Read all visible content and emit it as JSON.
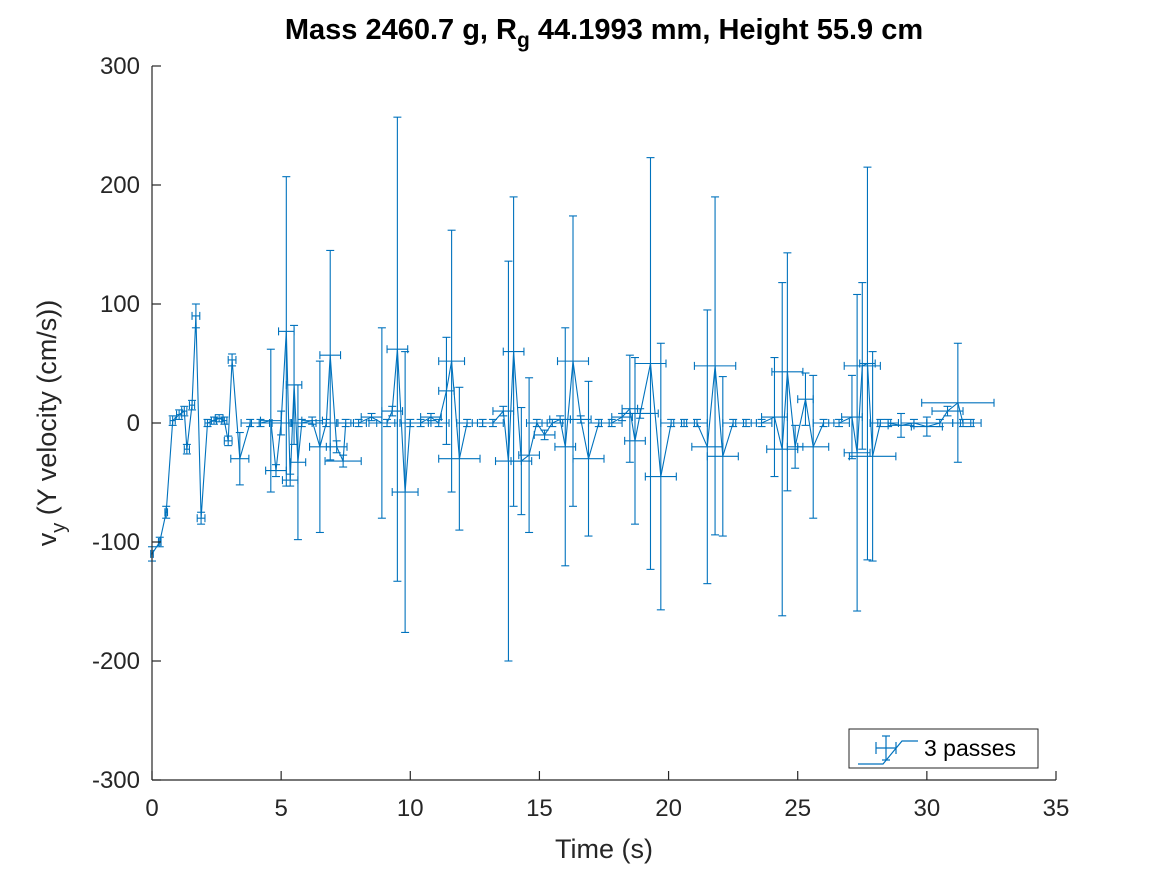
{
  "chart_data": {
    "type": "line",
    "title": {
      "part1": "Mass 2460.7 g, R",
      "subscript": "g",
      "part2": " 44.1993 mm,  Height 55.9 cm"
    },
    "xlabel": "Time (s)",
    "ylabel": {
      "main": "v",
      "subscript": "y",
      "rest": " (Y velocity (cm/s))"
    },
    "xlim": [
      0,
      35
    ],
    "ylim": [
      -300,
      300
    ],
    "xticks": [
      "0",
      "5",
      "10",
      "15",
      "20",
      "25",
      "30",
      "35"
    ],
    "yticks": [
      "-300",
      "-200",
      "-100",
      "0",
      "100",
      "200",
      "300"
    ],
    "legend": {
      "position": "bottom-right",
      "entries": [
        "3 passes"
      ]
    },
    "colors": {
      "series": "#0072BD",
      "axis": "#262626",
      "background": "#ffffff"
    },
    "grid": false,
    "series": [
      {
        "name": "3 passes",
        "errorbars": "both",
        "points": [
          [
            0.0,
            -110,
            6,
            0.05
          ],
          [
            0.3,
            -100,
            4,
            0.05
          ],
          [
            0.55,
            -75,
            5,
            0.05
          ],
          [
            0.8,
            2,
            4,
            0.1
          ],
          [
            1.05,
            7,
            4,
            0.1
          ],
          [
            1.25,
            10,
            4,
            0.1
          ],
          [
            1.35,
            -22,
            4,
            0.1
          ],
          [
            1.55,
            15,
            4,
            0.1
          ],
          [
            1.7,
            90,
            10,
            0.15
          ],
          [
            1.9,
            -80,
            5,
            0.15
          ],
          [
            2.15,
            0,
            3,
            0.1
          ],
          [
            2.4,
            2,
            3,
            0.1
          ],
          [
            2.6,
            4,
            3,
            0.15
          ],
          [
            2.8,
            2,
            3,
            0.1
          ],
          [
            2.95,
            -15,
            4,
            0.15
          ],
          [
            3.1,
            53,
            5,
            0.15
          ],
          [
            3.4,
            -30,
            22,
            0.35
          ],
          [
            3.8,
            0,
            3,
            0.35
          ],
          [
            4.2,
            0,
            3,
            0.35
          ],
          [
            4.6,
            2,
            60,
            0.4
          ],
          [
            4.8,
            -40,
            5,
            0.4
          ],
          [
            5.0,
            0,
            10,
            0.35
          ],
          [
            5.2,
            77,
            130,
            0.3
          ],
          [
            5.35,
            -48,
            5,
            0.3
          ],
          [
            5.5,
            32,
            50,
            0.3
          ],
          [
            5.65,
            -33,
            65,
            0.3
          ],
          [
            5.8,
            0,
            3,
            0.4
          ],
          [
            6.2,
            2,
            3,
            0.4
          ],
          [
            6.5,
            -20,
            72,
            0.4
          ],
          [
            6.75,
            0,
            3,
            0.4
          ],
          [
            6.9,
            57,
            88,
            0.4
          ],
          [
            7.15,
            -20,
            5,
            0.4
          ],
          [
            7.4,
            -32,
            5,
            0.7
          ],
          [
            7.5,
            0,
            3,
            0.3
          ],
          [
            8.0,
            0,
            3,
            0.3
          ],
          [
            8.5,
            5,
            3,
            0.4
          ],
          [
            8.9,
            0,
            80,
            0.5
          ],
          [
            9.1,
            0,
            3,
            0.4
          ],
          [
            9.3,
            10,
            4,
            0.4
          ],
          [
            9.5,
            62,
            195,
            0.4
          ],
          [
            9.8,
            -58,
            118,
            0.5
          ],
          [
            10.0,
            0,
            3,
            0.4
          ],
          [
            10.4,
            0,
            3,
            0.4
          ],
          [
            10.8,
            5,
            3,
            0.4
          ],
          [
            11.1,
            0,
            3,
            0.4
          ],
          [
            11.4,
            27,
            45,
            0.3
          ],
          [
            11.6,
            52,
            110,
            0.5
          ],
          [
            11.9,
            -30,
            60,
            0.8
          ],
          [
            12.2,
            0,
            3,
            0.4
          ],
          [
            12.8,
            0,
            3,
            0.4
          ],
          [
            13.2,
            0,
            3,
            0.4
          ],
          [
            13.6,
            10,
            4,
            0.4
          ],
          [
            13.8,
            -32,
            168,
            0.5
          ],
          [
            14.0,
            60,
            130,
            0.4
          ],
          [
            14.3,
            -32,
            45,
            0.4
          ],
          [
            14.6,
            -27,
            65,
            0.4
          ],
          [
            14.9,
            0,
            3,
            0.4
          ],
          [
            15.2,
            -10,
            4,
            0.4
          ],
          [
            15.5,
            0,
            3,
            0.4
          ],
          [
            15.8,
            3,
            3,
            0.4
          ],
          [
            16.0,
            -20,
            100,
            0.4
          ],
          [
            16.3,
            52,
            122,
            0.6
          ],
          [
            16.6,
            3,
            3,
            0.4
          ],
          [
            16.9,
            -30,
            65,
            0.6
          ],
          [
            17.3,
            0,
            3,
            0.4
          ],
          [
            17.8,
            0,
            3,
            0.4
          ],
          [
            18.2,
            5,
            3,
            0.4
          ],
          [
            18.5,
            12,
            45,
            0.3
          ],
          [
            18.7,
            -15,
            70,
            0.4
          ],
          [
            18.9,
            8,
            4,
            0.7
          ],
          [
            19.3,
            50,
            173,
            0.6
          ],
          [
            19.7,
            -45,
            112,
            0.6
          ],
          [
            20.1,
            0,
            3,
            0.4
          ],
          [
            20.6,
            0,
            3,
            0.4
          ],
          [
            21.1,
            0,
            3,
            0.4
          ],
          [
            21.5,
            -20,
            115,
            0.6
          ],
          [
            21.8,
            48,
            142,
            0.8
          ],
          [
            22.1,
            -28,
            67,
            0.6
          ],
          [
            22.5,
            0,
            3,
            0.4
          ],
          [
            23.0,
            0,
            3,
            0.4
          ],
          [
            23.6,
            0,
            3,
            0.4
          ],
          [
            24.1,
            5,
            50,
            0.5
          ],
          [
            24.4,
            -22,
            140,
            0.6
          ],
          [
            24.6,
            43,
            100,
            0.6
          ],
          [
            24.9,
            -20,
            18,
            0.3
          ],
          [
            25.3,
            20,
            22,
            0.3
          ],
          [
            25.6,
            -20,
            60,
            0.6
          ],
          [
            26.0,
            0,
            3,
            0.4
          ],
          [
            26.6,
            0,
            3,
            0.4
          ],
          [
            27.1,
            5,
            35,
            0.4
          ],
          [
            27.3,
            -25,
            133,
            0.5
          ],
          [
            27.5,
            48,
            70,
            0.7
          ],
          [
            27.7,
            50,
            165,
            0.3
          ],
          [
            27.9,
            -28,
            88,
            0.9
          ],
          [
            28.2,
            0,
            3,
            0.4
          ],
          [
            28.5,
            0,
            3,
            0.4
          ],
          [
            29.0,
            -2,
            10,
            0.5
          ],
          [
            29.5,
            0,
            3,
            0.5
          ],
          [
            30.0,
            -3,
            8,
            0.6
          ],
          [
            30.5,
            0,
            3,
            0.5
          ],
          [
            30.8,
            10,
            4,
            0.6
          ],
          [
            31.2,
            17,
            50,
            1.4
          ],
          [
            31.4,
            0,
            3,
            0.4
          ],
          [
            31.7,
            0,
            3,
            0.4
          ]
        ]
      }
    ]
  }
}
